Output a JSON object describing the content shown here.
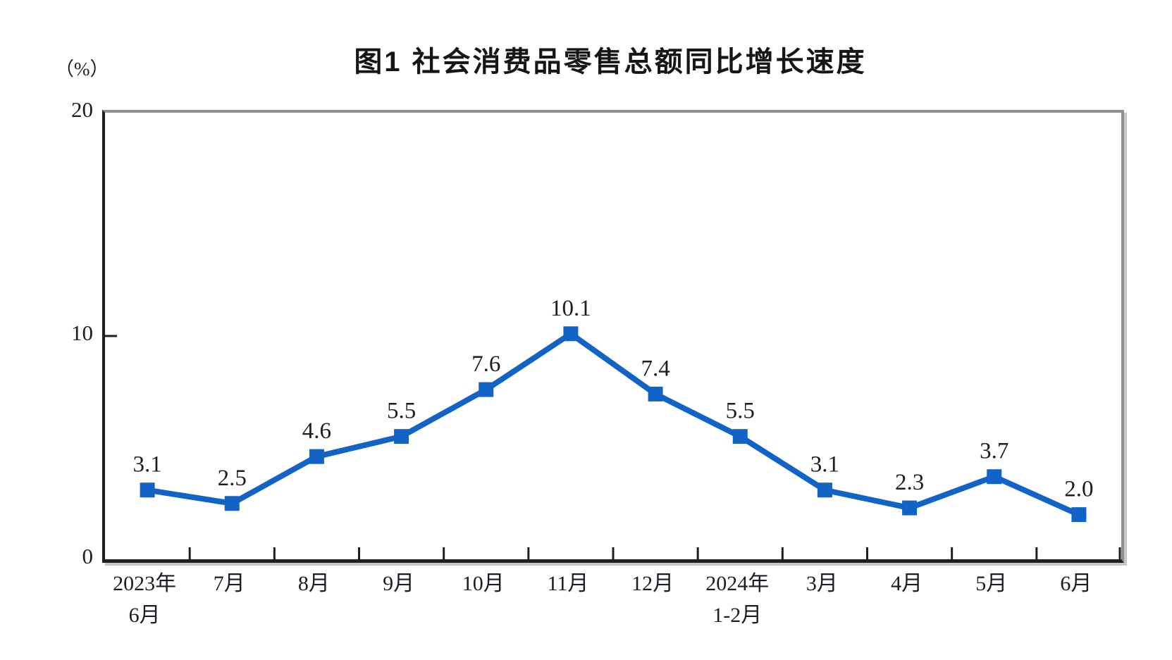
{
  "chart_data": {
    "type": "line",
    "title": "图1 社会消费品零售总额同比增长速度",
    "unit_label": "（%）",
    "categories": [
      "2023年\n6月",
      "7月",
      "8月",
      "9月",
      "10月",
      "11月",
      "12月",
      "2024年\n1-2月",
      "3月",
      "4月",
      "5月",
      "6月"
    ],
    "values": [
      3.1,
      2.5,
      4.6,
      5.5,
      7.6,
      10.1,
      7.4,
      5.5,
      3.1,
      2.3,
      3.7,
      2.0
    ],
    "data_labels": [
      "3.1",
      "2.5",
      "4.6",
      "5.5",
      "7.6",
      "10.1",
      "7.4",
      "5.5",
      "3.1",
      "2.3",
      "3.7",
      "2.0"
    ],
    "ylim": [
      0,
      20
    ],
    "yticks": [
      "0",
      "10",
      "20"
    ],
    "grid": "off",
    "legend": "none",
    "marker": "square",
    "line_color": "#1263c6",
    "marker_color": "#1263c6",
    "axis_color": "#1f1f1f",
    "frame_color": "#8f8f8f"
  }
}
